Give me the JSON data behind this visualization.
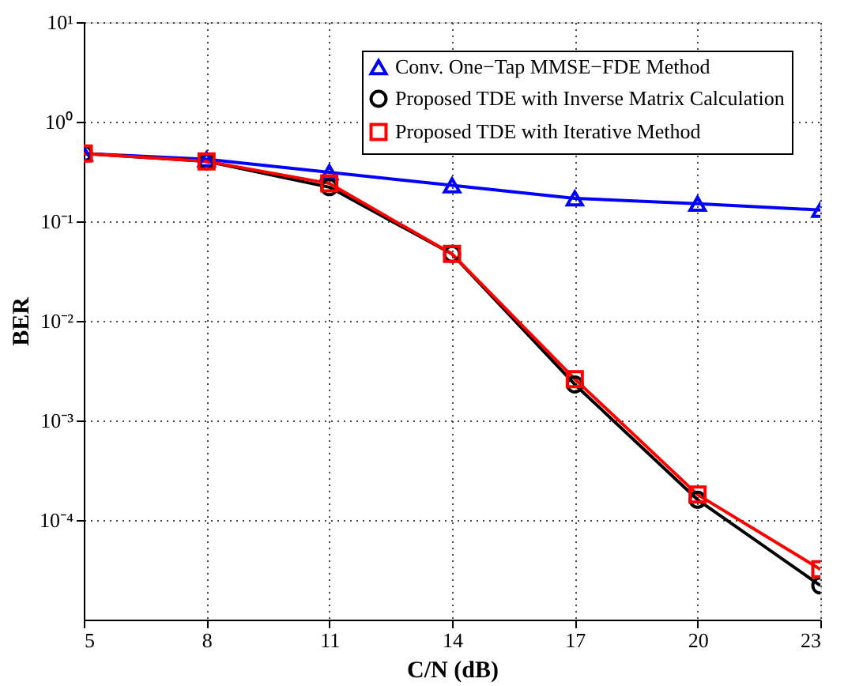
{
  "chart_data": {
    "type": "line",
    "xlabel": "C/N (dB)",
    "ylabel": "BER",
    "log": "y",
    "grid": true,
    "legend": "top right",
    "line_style": "solid",
    "x": [
      5,
      8,
      11,
      14,
      17,
      20,
      23
    ],
    "xlim": [
      5,
      23
    ],
    "xticks": [
      5,
      8,
      11,
      14,
      17,
      20,
      23
    ],
    "ylim": [
      1e-05,
      10
    ],
    "yticks": [
      {
        "value": 0.0001,
        "label": "10⁻⁴"
      },
      {
        "value": 0.001,
        "label": "10⁻³"
      },
      {
        "value": 0.01,
        "label": "10⁻²"
      },
      {
        "value": 0.1,
        "label": "10⁻¹"
      },
      {
        "value": 1,
        "label": "10⁰"
      },
      {
        "value": 10,
        "label": "10¹"
      }
    ],
    "series": [
      {
        "name": "Conv. One−Tap MMSE−FDE Method",
        "color": "#0000ff",
        "marker": "triangle",
        "values": [
          0.48,
          0.42,
          0.31,
          0.23,
          0.17,
          0.15,
          0.13
        ]
      },
      {
        "name": "Proposed TDE with Inverse Matrix Calculation",
        "color": "#000000",
        "marker": "circle",
        "values": [
          0.48,
          0.4,
          0.22,
          0.047,
          0.0023,
          0.00016,
          2.2e-05
        ]
      },
      {
        "name": "Proposed TDE with Iterative Method",
        "color": "#ff0000",
        "marker": "square",
        "values": [
          0.48,
          0.4,
          0.24,
          0.047,
          0.0026,
          0.00018,
          3.2e-05
        ]
      }
    ]
  }
}
